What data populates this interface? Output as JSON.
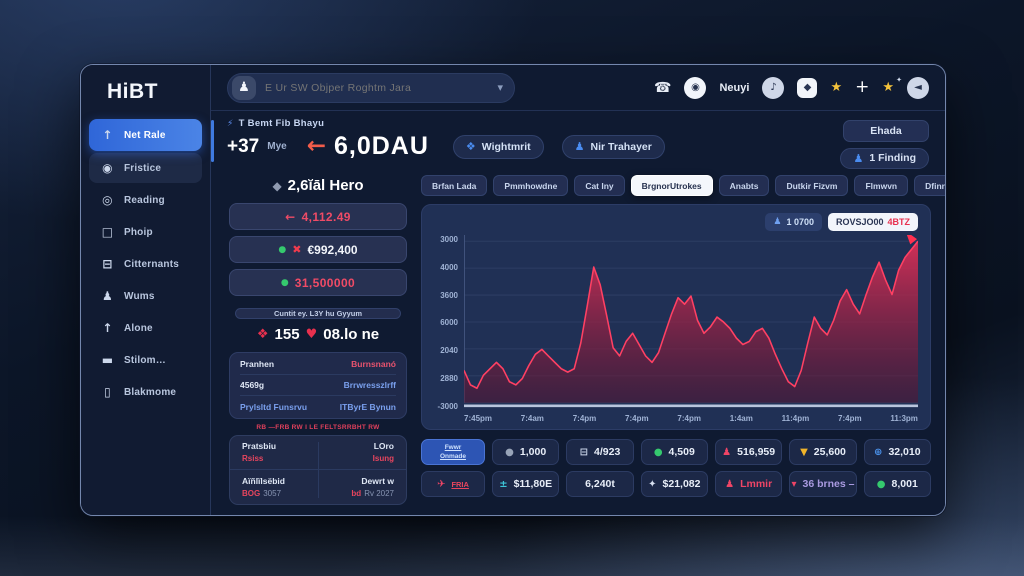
{
  "app": {
    "logo": "HiBT"
  },
  "sidebar": {
    "items": [
      {
        "icon": "arrow-up-icon",
        "glyph": "↑",
        "label": "Net Rale",
        "state": "active"
      },
      {
        "icon": "users-icon",
        "glyph": "◉",
        "label": "Fristice",
        "state": "hover"
      },
      {
        "icon": "gear-icon",
        "glyph": "◎",
        "label": "Reading",
        "state": ""
      },
      {
        "icon": "screen-icon",
        "glyph": "□",
        "label": "Phoip",
        "state": ""
      },
      {
        "icon": "monitor-icon",
        "glyph": "⊟",
        "label": "Citternants",
        "state": ""
      },
      {
        "icon": "user-icon",
        "glyph": "♟",
        "label": "Wums",
        "state": ""
      },
      {
        "icon": "arrow-up-icon",
        "glyph": "↑",
        "label": "Alone",
        "state": ""
      },
      {
        "icon": "card-icon",
        "glyph": "▬",
        "label": "Stilom…",
        "state": ""
      },
      {
        "icon": "phone-icon",
        "glyph": "▯",
        "label": "Blakmome",
        "state": ""
      }
    ]
  },
  "topbar": {
    "search": {
      "placeholder": "E Ur SW Objper Roghtm Jara",
      "user_glyph": "♟",
      "chevron": "▾"
    },
    "icons": [
      {
        "name": "phone-icon",
        "glyph": "☎",
        "style": "plain"
      },
      {
        "name": "chat-icon",
        "glyph": "◉",
        "style": "circle-white"
      },
      {
        "name": "menu-label",
        "text": "Neuyi"
      },
      {
        "name": "mic-icon",
        "glyph": "♪",
        "style": "circle-light"
      },
      {
        "name": "badge-icon",
        "glyph": "◆",
        "style": "square-white"
      },
      {
        "name": "star-icon",
        "glyph": "★",
        "style": "gold"
      },
      {
        "name": "plus-icon",
        "glyph": "+",
        "style": "plus"
      },
      {
        "name": "star-sparkle-icon",
        "glyph": "★",
        "style": "gold-sparkle"
      },
      {
        "name": "speaker-icon",
        "glyph": "◄",
        "style": "circle-light"
      }
    ]
  },
  "header": {
    "eyebrow_icon": "⚡",
    "eyebrow": "T Bemt Fib Bhayu",
    "delta": "+37",
    "delta_unit": "Mye",
    "arrow": "←",
    "headline": "6,0DAU",
    "pill1_icon": "❖",
    "pill1": "Wightmrit",
    "pill2_icon": "♟",
    "pill2": "Nir Trahayer",
    "btn_top": "Ehada",
    "btn_bottom_icon": "♟",
    "btn_bottom": "1 Finding"
  },
  "panel": {
    "title_icon": "◆",
    "title": "2,6ĭāl Hero",
    "stat_rows": [
      {
        "prefix": "←",
        "value": "4,112.49",
        "style": "red"
      },
      {
        "dot": "●",
        "cross": "✖",
        "value": "€992,400",
        "style": "white"
      },
      {
        "dot": "●",
        "value": "31,500000",
        "style": "red"
      }
    ],
    "subpill": "Cuntit ey. L3Y hu Gyyum",
    "bigstat": {
      "icon1": "❖",
      "v1": "155",
      "icon2": "♥",
      "v2": "08.lo ne"
    },
    "table1": [
      {
        "left": "Pranhen",
        "right": "Burnsnanó",
        "lc": "cw",
        "rc": "cr"
      },
      {
        "left": "4569g",
        "right": "Brrwresszlrff",
        "lc": "cw",
        "rc": "cl"
      },
      {
        "left": "Prylsltd Funsrvu",
        "right": "ITByrE Bynun",
        "lc": "cl",
        "rc": "cl"
      }
    ],
    "rednote": "RB —FRB RW I LE FELTSRRBHT RW",
    "table2": {
      "h1": "Pratsbiu",
      "h2": "LOro",
      "v1": "Rsiss",
      "v2": "Isung",
      "h3": "Aïñlïlsëbid",
      "h4": "Dewrt w",
      "v3": "BOG",
      "v3b": "3057",
      "v4": "bd",
      "v4b": "Rv 2027"
    }
  },
  "tabs": {
    "items": [
      "Brfan Lada",
      "Pmmhowdne",
      "Cat Iny",
      "BrgnorUtrokes",
      "Anabts",
      "Dutkir Fizvm",
      "Flmwvn",
      "Dfinnoslam"
    ],
    "active_index": 3
  },
  "chart": {
    "legend_user_icon": "♟",
    "legend_user": "1 0700",
    "legend_main": "ROVSJO00",
    "legend_red": "4BTZ",
    "chart_data": {
      "type": "area",
      "title": "",
      "y_ticks": [
        "3000",
        "4000",
        "3600",
        "6000",
        "2040",
        "2880",
        "-3000"
      ],
      "x_ticks": [
        "7:45pm",
        "7:4am",
        "7:4pm",
        "7:4pm",
        "7:4pm",
        "1:4am",
        "11:4pm",
        "7:4pm",
        "11:3pm"
      ],
      "ylim": [
        0,
        100
      ],
      "grid": true,
      "legend_position": "top-right",
      "line_color": "#ff4063",
      "fill_top": "#e03058",
      "fill_bottom": "#58122e",
      "series": [
        {
          "name": "price",
          "values": [
            20,
            11,
            9,
            17,
            21,
            25,
            21,
            13,
            11,
            15,
            23,
            30,
            33,
            29,
            25,
            21,
            19,
            21,
            37,
            60,
            84,
            73,
            54,
            34,
            29,
            38,
            43,
            36,
            29,
            25,
            31,
            43,
            55,
            65,
            61,
            66,
            51,
            43,
            47,
            53,
            50,
            46,
            40,
            36,
            38,
            44,
            46,
            40,
            30,
            21,
            13,
            10,
            20,
            37,
            53,
            46,
            42,
            51,
            63,
            70,
            61,
            55,
            67,
            78,
            87,
            76,
            67,
            82,
            90,
            95,
            100
          ]
        }
      ]
    }
  },
  "chips_row1": [
    {
      "type": "action",
      "lines": [
        "Fwwr",
        "Onmade"
      ]
    },
    {
      "icon": "dot-icon",
      "glyph": "●",
      "glyph_color": "#98a4b8",
      "value": "1,000"
    },
    {
      "icon": "bed-icon",
      "glyph": "⊟",
      "glyph_color": "#c9d4e8",
      "value": "4/923"
    },
    {
      "icon": "dot-icon",
      "glyph": "●",
      "glyph_color": "#35c96e",
      "value": "4,509"
    },
    {
      "icon": "user-icon",
      "glyph": "♟",
      "glyph_color": "#ef4566",
      "value": "516,959"
    },
    {
      "icon": "triangle-icon",
      "glyph": "▼",
      "glyph_color": "#f0b42a",
      "value": "25,600"
    },
    {
      "icon": "globe-icon",
      "glyph": "⊕",
      "glyph_color": "#4a90e8",
      "value": "32,010"
    }
  ],
  "chips_row2": [
    {
      "type": "action2",
      "glyph": "✈",
      "glyph_color": "#ef4566",
      "label": "FRIA"
    },
    {
      "icon": "scale-icon",
      "glyph": "±",
      "glyph_color": "#3ec6d8",
      "value": "$11,80E"
    },
    {
      "icon": "",
      "glyph": "",
      "glyph_color": "",
      "value": "6,240t"
    },
    {
      "icon": "bell-icon",
      "glyph": "✦",
      "glyph_color": "#d8e0f0",
      "value": "$21,082"
    },
    {
      "icon": "user-icon",
      "glyph": "♟",
      "glyph_color": "#ef4566",
      "value": "Lmmir",
      "value_color": "#ef4566"
    },
    {
      "icon": "arrow-down-icon",
      "glyph": "▾",
      "glyph_color": "#ef4566",
      "value": "36 brnes –",
      "value_color": "#a99ae0"
    },
    {
      "icon": "dot-icon",
      "glyph": "●",
      "glyph_color": "#35c96e",
      "value": "8,001"
    }
  ]
}
